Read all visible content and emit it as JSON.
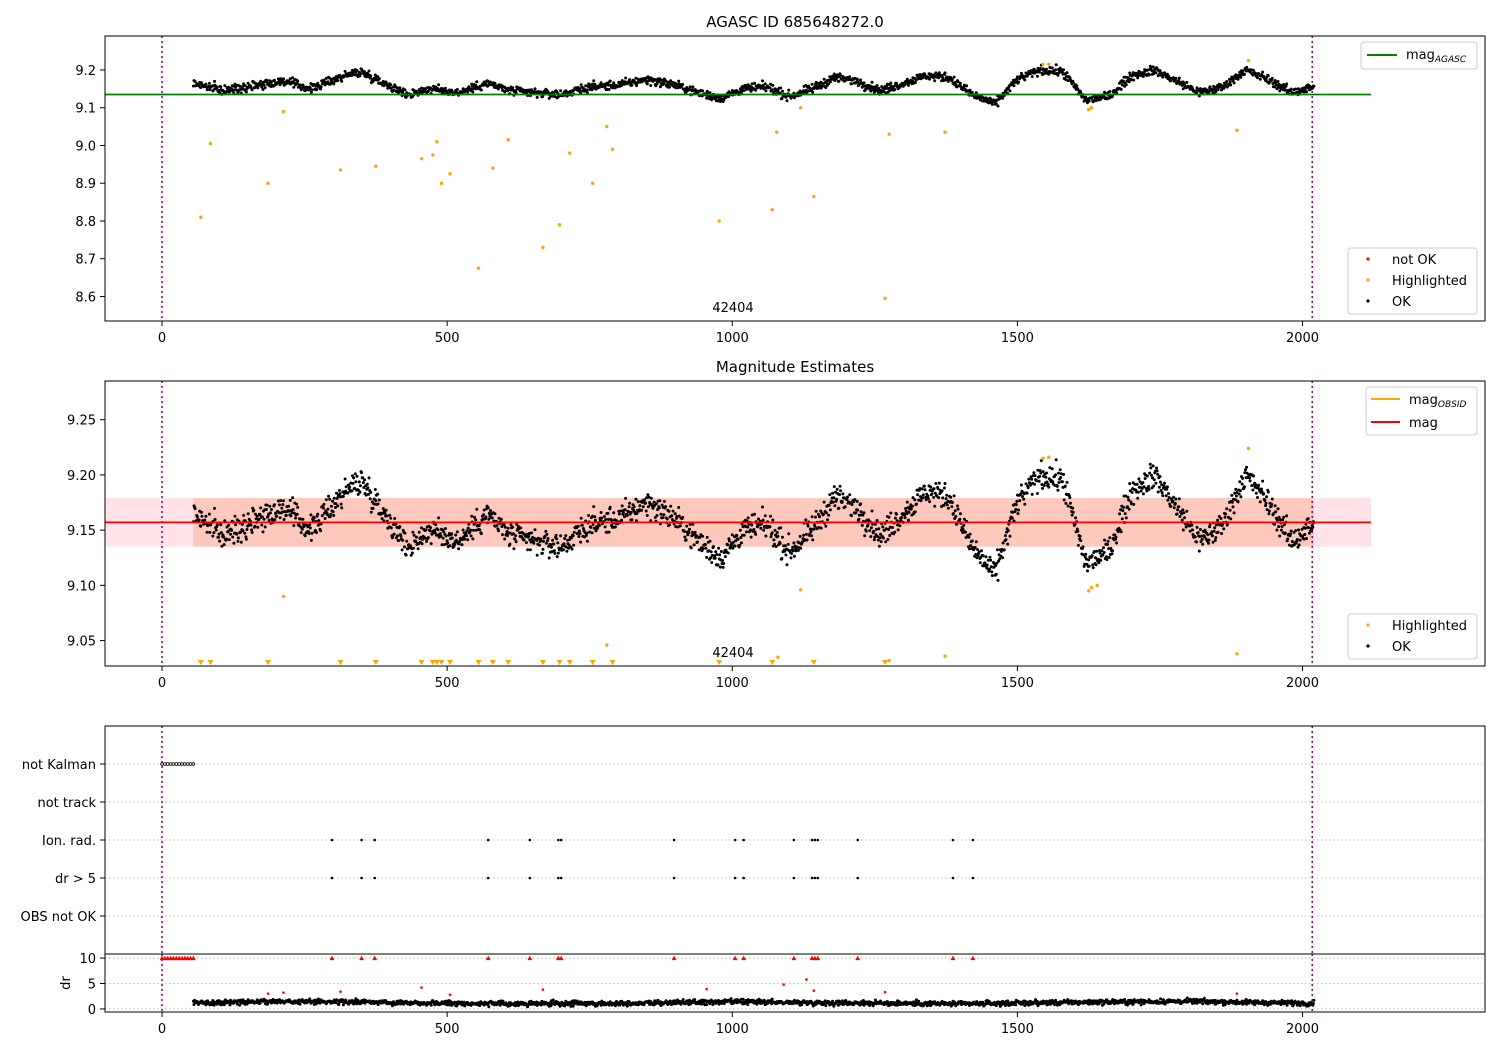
{
  "colors": {
    "ok": "#000000",
    "not_ok": "#ff0000",
    "highlighted": "#ffa500",
    "mag_agasc_line": "#008000",
    "mag_line": "#ff0000",
    "mag_obsid_line": "#ffa500",
    "vline": "#800080",
    "band_outer": "#ffc0cb",
    "band_inner": "#ffa07a"
  },
  "chart_data": [
    {
      "type": "scatter",
      "title": "AGASC ID 685648272.0",
      "annotation": "42404",
      "xlim": [
        -100,
        2320
      ],
      "ylim": [
        8.535,
        9.29
      ],
      "xticks": [
        0,
        500,
        1000,
        1500,
        2000
      ],
      "yticks": [
        8.6,
        8.7,
        8.8,
        8.9,
        9.0,
        9.1,
        9.2
      ],
      "ytick_labels": [
        "8.6",
        "8.7",
        "8.8",
        "8.9",
        "9.0",
        "9.1",
        "9.2"
      ],
      "vlines": [
        0,
        2017
      ],
      "hlines": [
        {
          "name": "mag",
          "subscript": "AGASC",
          "y": 9.135,
          "x_range": [
            -100,
            2120
          ]
        }
      ],
      "legend_lines": [
        {
          "name": "mag",
          "subscript": "AGASC"
        }
      ],
      "legend_markers": [
        {
          "name": "not OK",
          "color_key": "not_ok"
        },
        {
          "name": "Highlighted",
          "color_key": "highlighted"
        },
        {
          "name": "OK",
          "color_key": "ok"
        }
      ],
      "ok_trend": {
        "x_range": [
          55,
          2020
        ],
        "x": [
          55,
          110,
          160,
          215,
          260,
          320,
          350,
          390,
          430,
          470,
          520,
          570,
          610,
          650,
          700,
          750,
          800,
          850,
          900,
          940,
          980,
          1020,
          1060,
          1100,
          1140,
          1180,
          1220,
          1260,
          1300,
          1340,
          1380,
          1420,
          1460,
          1500,
          1540,
          1580,
          1620,
          1660,
          1700,
          1740,
          1780,
          1820,
          1860,
          1900,
          1940,
          1980,
          2020
        ],
        "y": [
          9.165,
          9.145,
          9.16,
          9.17,
          9.15,
          9.185,
          9.195,
          9.165,
          9.135,
          9.15,
          9.14,
          9.165,
          9.145,
          9.14,
          9.135,
          9.155,
          9.16,
          9.175,
          9.16,
          9.14,
          9.125,
          9.15,
          9.155,
          9.13,
          9.15,
          9.18,
          9.17,
          9.145,
          9.165,
          9.185,
          9.18,
          9.135,
          9.11,
          9.175,
          9.2,
          9.195,
          9.12,
          9.13,
          9.185,
          9.2,
          9.17,
          9.14,
          9.155,
          9.2,
          9.175,
          9.14,
          9.155
        ],
        "noise": 0.012
      },
      "highlighted_points": [
        [
          68,
          8.81
        ],
        [
          85,
          9.005
        ],
        [
          186,
          8.9
        ],
        [
          213,
          9.09
        ],
        [
          313,
          8.935
        ],
        [
          375,
          8.945
        ],
        [
          455,
          8.965
        ],
        [
          475,
          8.975
        ],
        [
          482,
          9.01
        ],
        [
          490,
          8.9
        ],
        [
          505,
          8.925
        ],
        [
          555,
          8.675
        ],
        [
          580,
          8.94
        ],
        [
          607,
          9.015
        ],
        [
          668,
          8.73
        ],
        [
          697,
          8.79
        ],
        [
          715,
          8.98
        ],
        [
          755,
          8.9
        ],
        [
          780,
          9.05
        ],
        [
          790,
          8.99
        ],
        [
          977,
          8.8
        ],
        [
          1070,
          8.83
        ],
        [
          1078,
          9.035
        ],
        [
          1120,
          9.1
        ],
        [
          1143,
          8.865
        ],
        [
          1268,
          8.595
        ],
        [
          1275,
          9.03
        ],
        [
          1373,
          9.035
        ],
        [
          1545,
          9.215
        ],
        [
          1555,
          9.215
        ],
        [
          1625,
          9.095
        ],
        [
          1630,
          9.1
        ],
        [
          1885,
          9.04
        ],
        [
          1905,
          9.225
        ]
      ]
    },
    {
      "type": "scatter",
      "title": "Magnitude Estimates",
      "annotation": "42404",
      "xlim": [
        -100,
        2320
      ],
      "ylim": [
        9.027,
        9.285
      ],
      "xticks": [
        0,
        500,
        1000,
        1500,
        2000
      ],
      "yticks": [
        9.05,
        9.1,
        9.15,
        9.2,
        9.25
      ],
      "ytick_labels": [
        "9.05",
        "9.10",
        "9.15",
        "9.20",
        "9.25"
      ],
      "vlines": [
        0,
        2017
      ],
      "hlines": [
        {
          "name": "mag",
          "y": 9.157,
          "x_range": [
            -100,
            2120
          ]
        }
      ],
      "bands": [
        {
          "name": "outer",
          "y_range": [
            9.135,
            9.179
          ],
          "x_range": [
            -100,
            2120
          ]
        },
        {
          "name": "inner",
          "y_range": [
            9.135,
            9.179
          ],
          "x_range": [
            55,
            2020
          ]
        }
      ],
      "legend_lines": [
        {
          "name": "mag",
          "subscript": "OBSID",
          "color_key": "mag_obsid_line"
        },
        {
          "name": "mag",
          "color_key": "mag_line"
        }
      ],
      "legend_markers": [
        {
          "name": "Highlighted",
          "color_key": "highlighted"
        },
        {
          "name": "OK",
          "color_key": "ok"
        }
      ],
      "ok_trend": {
        "x_range": [
          55,
          2020
        ],
        "x": [
          55,
          110,
          160,
          215,
          260,
          320,
          350,
          390,
          430,
          470,
          520,
          570,
          610,
          650,
          700,
          750,
          800,
          850,
          900,
          940,
          980,
          1020,
          1060,
          1100,
          1140,
          1180,
          1220,
          1260,
          1300,
          1340,
          1380,
          1420,
          1460,
          1500,
          1540,
          1580,
          1620,
          1660,
          1700,
          1740,
          1780,
          1820,
          1860,
          1900,
          1940,
          1980,
          2020
        ],
        "y": [
          9.165,
          9.145,
          9.16,
          9.17,
          9.15,
          9.185,
          9.195,
          9.165,
          9.135,
          9.15,
          9.14,
          9.165,
          9.145,
          9.14,
          9.135,
          9.155,
          9.16,
          9.175,
          9.16,
          9.14,
          9.125,
          9.15,
          9.155,
          9.13,
          9.15,
          9.18,
          9.17,
          9.145,
          9.165,
          9.185,
          9.18,
          9.135,
          9.11,
          9.175,
          9.2,
          9.195,
          9.12,
          9.13,
          9.185,
          9.2,
          9.17,
          9.14,
          9.155,
          9.2,
          9.175,
          9.14,
          9.155
        ],
        "noise": 0.012
      },
      "highlighted_points": [
        [
          213,
          9.09
        ],
        [
          780,
          9.046
        ],
        [
          1120,
          9.096
        ],
        [
          1545,
          9.215
        ],
        [
          1555,
          9.216
        ],
        [
          1625,
          9.095
        ],
        [
          1630,
          9.098
        ],
        [
          1640,
          9.1
        ],
        [
          1885,
          9.038
        ],
        [
          1905,
          9.224
        ],
        [
          1080,
          9.035
        ],
        [
          1275,
          9.032
        ],
        [
          1373,
          9.036
        ]
      ],
      "highlighted_below_x": [
        68,
        85,
        186,
        313,
        375,
        455,
        475,
        482,
        490,
        505,
        555,
        580,
        607,
        668,
        697,
        715,
        755,
        790,
        977,
        1070,
        1143,
        1268
      ]
    },
    {
      "type": "scatter",
      "categories": [
        "not Kalman",
        "not track",
        "Ion. rad.",
        "dr > 5",
        "OBS not OK"
      ],
      "xlim": [
        -100,
        2320
      ],
      "vlines": [
        0,
        2017
      ],
      "not_kalman_x": [
        0,
        5,
        10,
        15,
        20,
        25,
        30,
        35,
        40,
        45,
        50,
        55
      ],
      "flag_x": [
        298,
        350,
        373,
        572,
        645,
        695,
        700,
        898,
        1005,
        1020,
        1108,
        1140,
        1145,
        1150,
        1220,
        1387,
        1422
      ]
    },
    {
      "type": "scatter",
      "ylabel": "dr",
      "xlim": [
        -100,
        2320
      ],
      "ylim": [
        -0.6,
        10.8
      ],
      "yticks": [
        0,
        5,
        10
      ],
      "ytick_labels": [
        "0",
        "5",
        "10"
      ],
      "xticks": [
        0,
        500,
        1000,
        1500,
        2000
      ],
      "vlines": [
        0,
        2017
      ],
      "ok_trend": {
        "x_range": [
          55,
          2020
        ],
        "x": [
          55,
          200,
          400,
          600,
          800,
          1000,
          1200,
          1400,
          1600,
          1800,
          2020
        ],
        "y": [
          1.2,
          1.5,
          1.3,
          1.0,
          1.1,
          1.4,
          1.2,
          1.0,
          1.3,
          1.5,
          1.1
        ],
        "noise": 0.5
      },
      "capped_red_x": [
        0,
        5,
        10,
        15,
        20,
        25,
        30,
        35,
        40,
        45,
        50,
        55,
        298,
        350,
        373,
        572,
        645,
        695,
        700,
        898,
        1005,
        1020,
        1108,
        1140,
        1145,
        1150,
        1220,
        1387,
        1422
      ],
      "red_points": [
        [
          186,
          3.0
        ],
        [
          213,
          3.2
        ],
        [
          313,
          3.4
        ],
        [
          455,
          4.2
        ],
        [
          505,
          2.8
        ],
        [
          668,
          3.8
        ],
        [
          955,
          3.9
        ],
        [
          1090,
          4.8
        ],
        [
          1130,
          5.8
        ],
        [
          1143,
          3.6
        ],
        [
          1268,
          3.3
        ],
        [
          1885,
          3.0
        ]
      ]
    }
  ]
}
